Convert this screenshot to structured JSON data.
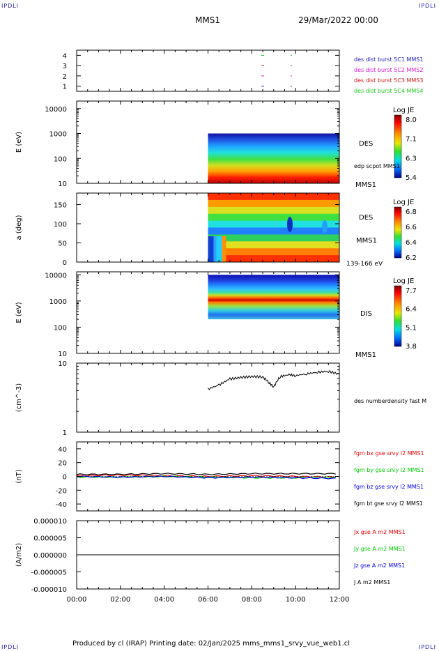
{
  "header": {
    "corner_tl": "IPDLI",
    "corner_tr": "IPDLI",
    "corner_bl": "IPDLI",
    "corner_br": "IPDLI",
    "spacecraft": "MMS1",
    "date": "29/Mar/2022 00:00"
  },
  "footer": {
    "text": "Produced by cl (IRAP)   Printing date: 02/Jan/2025   mms_mms1_srvy_vue_web1.cl"
  },
  "colors": {
    "sc1": "#1a1ab4",
    "sc2": "#d21ad2",
    "sc3": "#d21a1a",
    "sc4": "#1ac81a",
    "bx": "#e60000",
    "by": "#00c800",
    "bz": "#0000e6",
    "bt": "#000000"
  },
  "chart_data": [
    {
      "id": "burst",
      "type": "scatter",
      "yticks": [
        "1",
        "2",
        "3",
        "4"
      ],
      "ylim": [
        0.5,
        4.5
      ],
      "x_hours": [
        8.5,
        9.8
      ],
      "legend": [
        "des dist burst 5C1 MMS1",
        "des dist burst 5C2 MMS2",
        "des dist burst 5C3 MMS3",
        "des dist burst 5C4 MMS4"
      ]
    },
    {
      "id": "des_energy",
      "type": "heatmap",
      "ylabel": "E (eV)",
      "yscale": "log",
      "ylim": [
        10,
        20000
      ],
      "yticks": [
        "10",
        "100",
        "1000",
        "10000"
      ],
      "data_start_hour": 6.0,
      "data_energy_range": [
        10,
        1000
      ],
      "label": "DES",
      "label2": "edp scpot MMS1",
      "label3": "MMS1",
      "colorbar": {
        "title": "Log JE",
        "ticks": [
          "8.0",
          "7.1",
          "6.3",
          "5.4"
        ]
      }
    },
    {
      "id": "des_pitch",
      "type": "heatmap",
      "ylabel": "a (deg)",
      "ylim": [
        0,
        180
      ],
      "yticks": [
        "0",
        "50",
        "100",
        "150"
      ],
      "data_start_hour": 6.0,
      "label": "DES",
      "label2": "MMS1",
      "label3": "139-166 eV",
      "colorbar": {
        "title": "Log JE",
        "ticks": [
          "6.8",
          "6.6",
          "6.4",
          "6.2"
        ]
      }
    },
    {
      "id": "dis_energy",
      "type": "heatmap",
      "ylabel": "E (eV)",
      "yscale": "log",
      "ylim": [
        10,
        13000
      ],
      "yticks": [
        "10",
        "100",
        "1000",
        "10000"
      ],
      "data_start_hour": 6.0,
      "data_energy_range": [
        200,
        10000
      ],
      "label": "DIS",
      "label2": "MMS1",
      "colorbar": {
        "title": "Log JE",
        "ticks": [
          "7.7",
          "6.4",
          "5.1",
          "3.8"
        ]
      }
    },
    {
      "id": "density",
      "type": "line",
      "ylabel": "(cm^-3)",
      "yscale": "log",
      "ylim": [
        1,
        10
      ],
      "yticks": [
        "1",
        "10"
      ],
      "x_hours": [
        6.0,
        6.5,
        7.0,
        7.5,
        8.0,
        8.5,
        8.8,
        9.0,
        9.3,
        9.7,
        10.0,
        10.5,
        11.0,
        11.5,
        12.0
      ],
      "values": [
        4.2,
        4.8,
        5.9,
        6.2,
        6.4,
        6.3,
        5.2,
        4.5,
        6.4,
        6.8,
        6.6,
        7.0,
        7.4,
        7.6,
        6.9
      ],
      "legend": [
        "des numberdensity fast M"
      ]
    },
    {
      "id": "bfield",
      "type": "line",
      "ylabel": "(nT)",
      "ylim": [
        -50,
        50
      ],
      "yticks": [
        "-40",
        "-20",
        "0",
        "20",
        "40"
      ],
      "series": [
        {
          "name": "fgm bx gse srvy l2 MMS1",
          "x_hours": [
            0,
            2,
            4,
            6,
            8,
            10,
            12
          ],
          "values": [
            1,
            2,
            1,
            0,
            1,
            0,
            -1
          ]
        },
        {
          "name": "fgm by gse srvy l2 MMS1",
          "x_hours": [
            0,
            2,
            4,
            6,
            8,
            10,
            12
          ],
          "values": [
            -1,
            -1,
            0,
            -1,
            -2,
            -2,
            -1
          ]
        },
        {
          "name": "fgm bz gse srvy l2 MMS1",
          "x_hours": [
            0,
            2,
            4,
            6,
            8,
            10,
            12
          ],
          "values": [
            0,
            -1,
            0,
            -2,
            -1,
            -2,
            -3
          ]
        },
        {
          "name": "fgm bt gse srvy l2 MMS1",
          "x_hours": [
            0,
            2,
            4,
            6,
            8,
            10,
            12
          ],
          "values": [
            3,
            3,
            4,
            3,
            4,
            4,
            4
          ]
        }
      ]
    },
    {
      "id": "current",
      "type": "line",
      "ylabel": "(A/m2)",
      "ylim": [
        -1e-05,
        1e-05
      ],
      "yticks": [
        "-0.000010",
        "-0.000005",
        "0.000000",
        "0.000005",
        "0.000010"
      ],
      "xticks": [
        "00:00",
        "02:00",
        "04:00",
        "06:00",
        "08:00",
        "10:00",
        "12:00"
      ],
      "xlim": [
        0,
        12
      ],
      "series": [
        {
          "name": "Jx gse A m2 MMS1",
          "x_hours": [
            0,
            12
          ],
          "values": [
            0,
            0
          ]
        },
        {
          "name": "Jy gse A m2 MMS1",
          "x_hours": [
            0,
            12
          ],
          "values": [
            0,
            0
          ]
        },
        {
          "name": "Jz gse A m2 MMS1",
          "x_hours": [
            0,
            12
          ],
          "values": [
            0,
            0
          ]
        },
        {
          "name": "J A m2 MMS1",
          "x_hours": [
            0,
            12
          ],
          "values": [
            0,
            0
          ]
        }
      ]
    }
  ]
}
